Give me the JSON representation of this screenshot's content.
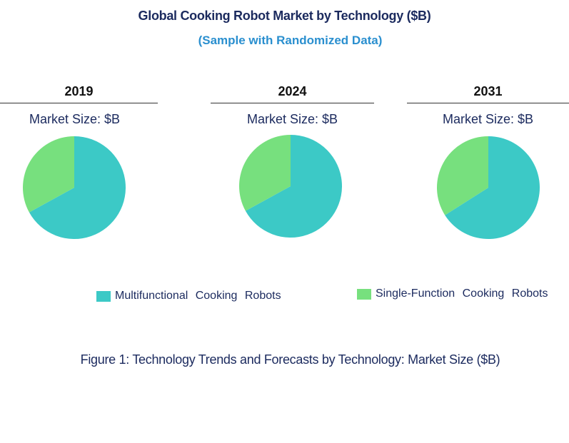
{
  "title": "Global Cooking Robot Market by Technology ($B)",
  "subtitle": "(Sample with Randomized Data)",
  "caption": "Figure 1: Technology Trends and Forecasts by Technology: Market Size ($B)",
  "colors": {
    "multifunctional": "#3cc9c6",
    "single_function": "#77e07e"
  },
  "legend": [
    {
      "label": "Multifunctional  Cooking  Robots",
      "color": "#3cc9c6"
    },
    {
      "label": "Single-Function  Cooking  Robots",
      "color": "#77e07e"
    }
  ],
  "chart_data": [
    {
      "type": "pie",
      "title": "2019",
      "subtitle": "Market Size: $B",
      "categories": [
        "Multifunctional  Cooking  Robots",
        "Single-Function  Cooking  Robots"
      ],
      "values": [
        67,
        33
      ]
    },
    {
      "type": "pie",
      "title": "2024",
      "subtitle": "Market Size: $B",
      "categories": [
        "Multifunctional  Cooking  Robots",
        "Single-Function  Cooking  Robots"
      ],
      "values": [
        67,
        33
      ]
    },
    {
      "type": "pie",
      "title": "2031",
      "subtitle": "Market Size: $B",
      "categories": [
        "Multifunctional  Cooking  Robots",
        "Single-Function  Cooking  Robots"
      ],
      "values": [
        66,
        34
      ]
    }
  ]
}
